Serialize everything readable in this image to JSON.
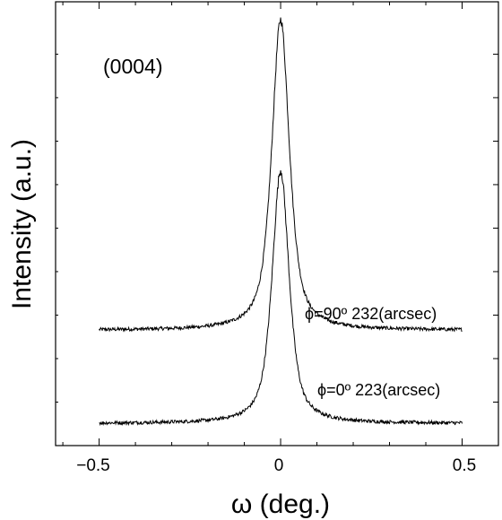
{
  "chart_data": {
    "type": "line",
    "xlabel": "ω (deg.)",
    "ylabel": "Intensity (a.u.)",
    "xlim": [
      -0.62,
      0.6
    ],
    "xticks": [
      -0.5,
      0,
      0.5
    ],
    "xtick_labels": [
      "−0.5",
      "0",
      "0.5"
    ],
    "y_tick_labels_shown": false,
    "grid": false,
    "legend": "none",
    "annotations": {
      "panel_label": "(0004)",
      "series_90_label": "ϕ=90º  232(arcsec)",
      "series_0_label": "ϕ=0º  223(arcsec)"
    },
    "series": [
      {
        "name": "ϕ=90º  232(arcsec)",
        "x_range": [
          -0.5,
          0.5
        ],
        "center": 0.0,
        "baseline": 0.26,
        "peak": 0.96,
        "fwhm_arcsec": 232,
        "color": "#000000"
      },
      {
        "name": "ϕ=0º  223(arcsec)",
        "x_range": [
          -0.5,
          0.5
        ],
        "center": 0.0,
        "baseline": 0.05,
        "peak": 0.62,
        "fwhm_arcsec": 223,
        "color": "#000000"
      }
    ]
  }
}
